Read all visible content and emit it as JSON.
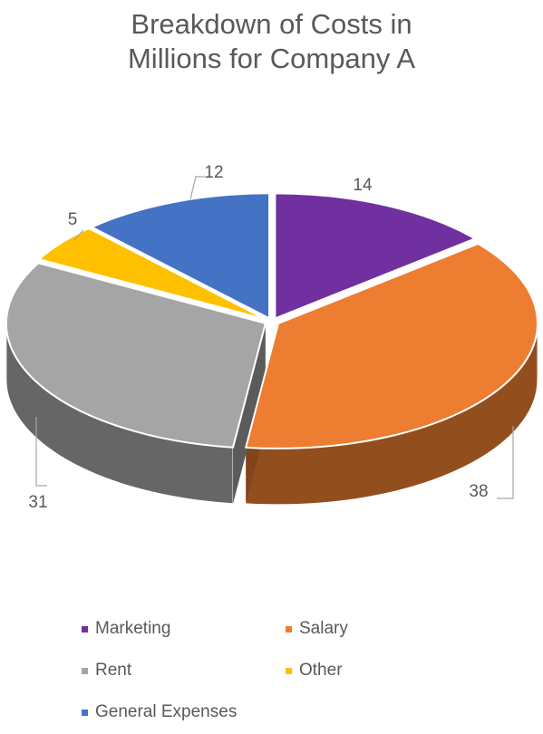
{
  "chart_data": {
    "type": "pie",
    "title": "Breakdown of Costs in Millions for Company A",
    "title_lines": [
      "Breakdown of Costs in",
      "Millions for Company A"
    ],
    "style": "3d-exploded",
    "categories": [
      "Marketing",
      "Salary",
      "Rent",
      "Other",
      "General Expenses"
    ],
    "values": [
      14,
      38,
      31,
      5,
      12
    ],
    "colors": [
      "#7030A0",
      "#ED7D31",
      "#A5A5A5",
      "#FFC000",
      "#4472C4"
    ],
    "data_labels": [
      "14",
      "38",
      "31",
      "5",
      "12"
    ],
    "legend": {
      "position": "bottom",
      "entries": [
        "Marketing",
        "Salary",
        "Rent",
        "Other",
        "General Expenses"
      ]
    }
  }
}
